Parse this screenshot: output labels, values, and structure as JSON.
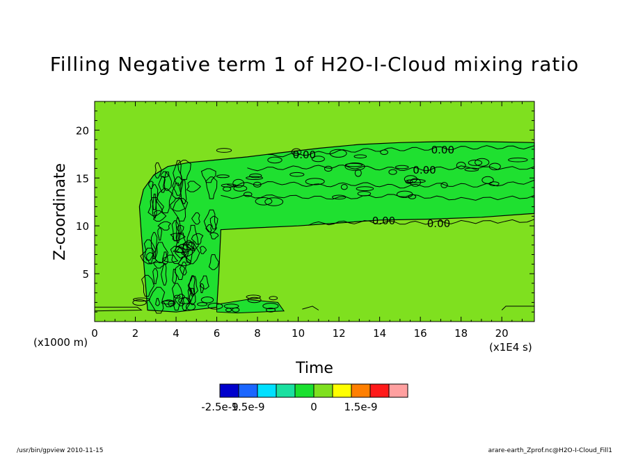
{
  "chart_data": {
    "type": "heatmap",
    "title": "Filling Negative term 1 of H2O-I-Cloud mixing ratio",
    "xlabel": "Time",
    "ylabel": "Z-coordinate",
    "x_unit_label": "(x1E4 s)",
    "y_unit_label": "(x1000 m)",
    "xlim": [
      0,
      21.6
    ],
    "ylim": [
      0,
      23
    ],
    "x_ticks": [
      {
        "value": 0,
        "label": "0"
      },
      {
        "value": 2,
        "label": "2"
      },
      {
        "value": 4,
        "label": "4"
      },
      {
        "value": 6,
        "label": "6"
      },
      {
        "value": 8,
        "label": "8"
      },
      {
        "value": 10,
        "label": "10"
      },
      {
        "value": 12,
        "label": "12"
      },
      {
        "value": 14,
        "label": "14"
      },
      {
        "value": 16,
        "label": "16"
      },
      {
        "value": 18,
        "label": "18"
      },
      {
        "value": 20,
        "label": "20"
      }
    ],
    "y_ticks": [
      {
        "value": 5,
        "label": "5"
      },
      {
        "value": 10,
        "label": "10"
      },
      {
        "value": 15,
        "label": "15"
      },
      {
        "value": 20,
        "label": "20"
      }
    ],
    "background_level_color": "#7fe01f",
    "cloud_level_color": "#1fe030",
    "contour_labels": [
      {
        "x": 10.3,
        "y": 17.5,
        "text": "0.00"
      },
      {
        "x": 17.1,
        "y": 18.0,
        "text": "0.00"
      },
      {
        "x": 16.2,
        "y": 15.9,
        "text": "0.00"
      },
      {
        "x": 14.2,
        "y": 10.6,
        "text": "0.00"
      },
      {
        "x": 16.9,
        "y": 10.3,
        "text": "0.00"
      }
    ],
    "colorbar": {
      "colors": [
        "#0000cc",
        "#1a66ff",
        "#00e0ff",
        "#1ae0a0",
        "#1ae030",
        "#7fe01f",
        "#ffff00",
        "#ff7f00",
        "#ff1a1a",
        "#ffa0a0"
      ],
      "tick_labels": [
        {
          "text": "-2.5e-9",
          "boundary": 0
        },
        {
          "text": "1.5e-9",
          "boundary": 1.5
        },
        {
          "text": "0",
          "boundary": 5
        },
        {
          "text": "1.5e-9",
          "boundary": 7.5
        }
      ]
    }
  },
  "footer": {
    "left": "/usr/bin/gpview   2010-11-15",
    "right": "arare-earth_Zprof.nc@H2O-I-Cloud_Fill1"
  }
}
